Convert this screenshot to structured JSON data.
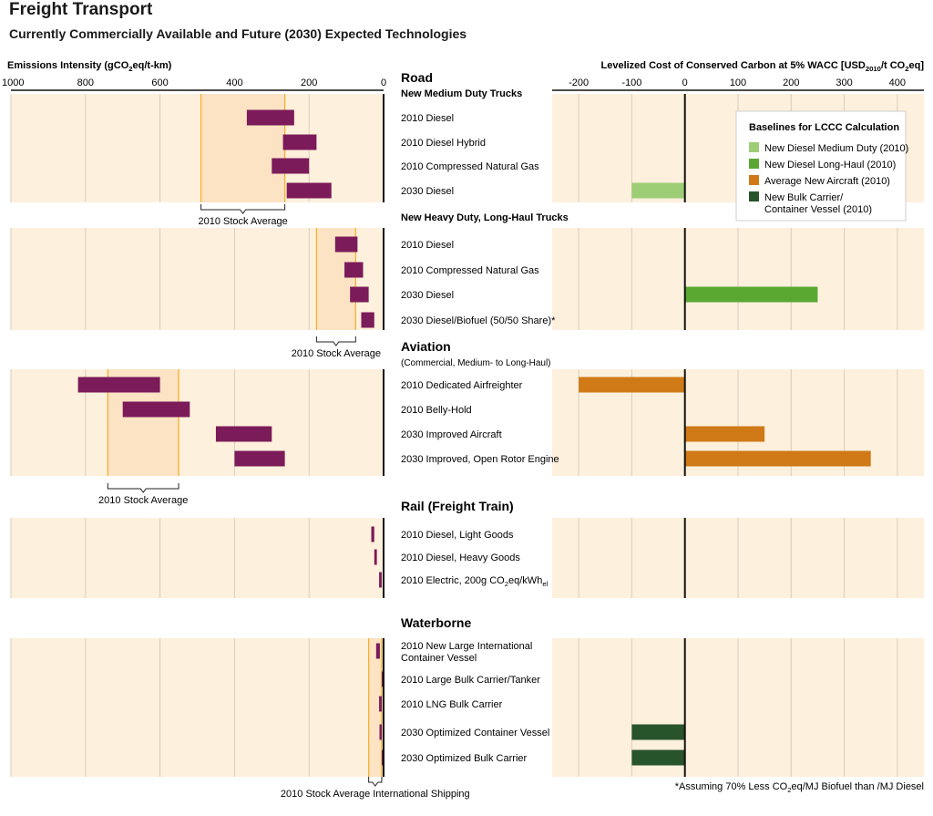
{
  "title": "Freight Transport",
  "subtitle": "Currently Commercially Available and Future (2030) Expected Technologies",
  "footnote": "*Assuming 70% Less CO₂eq/MJ Biofuel than /MJ Diesel",
  "colors": {
    "panel": "#fdf0dc",
    "stock_band": "#fbe3c4",
    "stock_line": "#f2b233",
    "emission_bar": "#7b1b5a",
    "gridline": "#d9cdc0",
    "new_diesel_medium": "#9dcd74",
    "new_diesel_long_haul": "#5aa832",
    "average_new_aircraft": "#cf7a17",
    "new_bulk_carrier": "#27542a"
  },
  "chart_data": [
    {
      "type": "bar",
      "orientation": "horizontal",
      "name": "left",
      "xlabel": "Emissions Intensity (gCO₂eq/t-km)",
      "xlim": [
        1000,
        0
      ],
      "xticks": [
        "1000",
        "800",
        "600",
        "400",
        "200",
        "0"
      ],
      "grid": true,
      "groups": [
        {
          "section": "Road",
          "subtitle": "New Medium Duty Trucks",
          "stock_average": {
            "label": "2010 Stock Average",
            "range": [
              490,
              265
            ]
          },
          "items": [
            {
              "label": "2010 Diesel",
              "range": [
                367,
                240
              ]
            },
            {
              "label": "2010 Diesel Hybrid",
              "range": [
                270,
                180
              ]
            },
            {
              "label": "2010 Compressed Natural Gas",
              "range": [
                300,
                200
              ]
            },
            {
              "label": "2030 Diesel",
              "range": [
                260,
                140
              ]
            }
          ]
        },
        {
          "section": "",
          "subtitle": "New Heavy Duty, Long-Haul Trucks",
          "stock_average": {
            "label": "2010 Stock Average",
            "range": [
              180,
              75
            ]
          },
          "items": [
            {
              "label": "2010 Diesel",
              "range": [
                130,
                70
              ]
            },
            {
              "label": "2010 Compressed Natural Gas",
              "range": [
                105,
                55
              ]
            },
            {
              "label": "2030 Diesel",
              "range": [
                90,
                40
              ]
            },
            {
              "label": "2030 Diesel/Biofuel  (50/50 Share)*",
              "range": [
                60,
                25
              ]
            }
          ]
        },
        {
          "section": "Aviation",
          "subtitle": "(Commercial, Medium- to Long-Haul)",
          "stock_average": {
            "label": "2010 Stock Average",
            "range": [
              740,
              550
            ]
          },
          "items": [
            {
              "label": "2010 Dedicated Airfreighter",
              "range": [
                820,
                600
              ]
            },
            {
              "label": "2010 Belly-Hold",
              "range": [
                700,
                520
              ]
            },
            {
              "label": "2030 Improved Aircraft",
              "range": [
                450,
                300
              ]
            },
            {
              "label": "2030 Improved, Open Rotor Engine",
              "range": [
                400,
                265
              ]
            }
          ]
        },
        {
          "section": "Rail (Freight Train)",
          "subtitle": "",
          "stock_average": null,
          "items": [
            {
              "label": "2010 Diesel, Light Goods",
              "range": [
                33,
                25
              ]
            },
            {
              "label": "2010 Diesel, Heavy Goods",
              "range": [
                25,
                18
              ]
            },
            {
              "label": "2010 Electric, 200g CO₂eq/kWhₑₗ",
              "range": [
                12,
                5
              ]
            }
          ]
        },
        {
          "section": "Waterborne",
          "subtitle": "",
          "stock_average": {
            "label": "2010 Stock Average International Shipping",
            "range": [
              40,
              5
            ]
          },
          "items": [
            {
              "label": "2010 New Large International Container Vessel",
              "range": [
                20,
                10
              ]
            },
            {
              "label": "2010 Large Bulk Carrier/Tanker",
              "range": [
                5,
                0
              ]
            },
            {
              "label": "2010 LNG Bulk Carrier",
              "range": [
                12,
                5
              ]
            },
            {
              "label": "2030 Optimized Container Vessel",
              "range": [
                11,
                5
              ]
            },
            {
              "label": "2030 Optimized Bulk Carrier",
              "range": [
                5,
                0
              ]
            }
          ]
        }
      ]
    },
    {
      "type": "bar",
      "orientation": "horizontal",
      "name": "right",
      "xlabel": "Levelized Cost of Conserved Carbon at 5% WACC [USD₂₀₁₀/t CO₂eq]",
      "xlim": [
        -250,
        450
      ],
      "xticks": [
        -200,
        -100,
        0,
        100,
        200,
        300,
        400
      ],
      "grid": true,
      "legend": {
        "title": "Baselines for LCCC Calculation",
        "position": "top-right",
        "entries": [
          {
            "label": "New Diesel Medium Duty (2010)",
            "color": "#9dcd74"
          },
          {
            "label": "New Diesel Long-Haul (2010)",
            "color": "#5aa832"
          },
          {
            "label": "Average New Aircraft (2010)",
            "color": "#cf7a17"
          },
          {
            "label": "New Bulk Carrier/ Container Vessel (2010)",
            "color": "#27542a"
          }
        ]
      },
      "bars": [
        {
          "item": "Road / 2030 Diesel (medium duty)",
          "value": -100,
          "baseline": "New Diesel Medium Duty (2010)"
        },
        {
          "item": "Road / 2030 Diesel (long-haul)",
          "value": 250,
          "baseline": "New Diesel Long-Haul (2010)"
        },
        {
          "item": "Aviation / 2010 Dedicated Airfreighter",
          "value": -200,
          "baseline": "Average New Aircraft (2010)"
        },
        {
          "item": "Aviation / 2030 Improved Aircraft",
          "value": 150,
          "baseline": "Average New Aircraft (2010)"
        },
        {
          "item": "Aviation / 2030 Improved, Open Rotor Engine",
          "value": 350,
          "baseline": "Average New Aircraft (2010)"
        },
        {
          "item": "Waterborne / 2030 Optimized Container Vessel",
          "value": -100,
          "baseline": "New Bulk Carrier/ Container Vessel (2010)"
        },
        {
          "item": "Waterborne / 2030 Optimized Bulk Carrier",
          "value": -100,
          "baseline": "New Bulk Carrier/ Container Vessel (2010)"
        }
      ]
    }
  ]
}
